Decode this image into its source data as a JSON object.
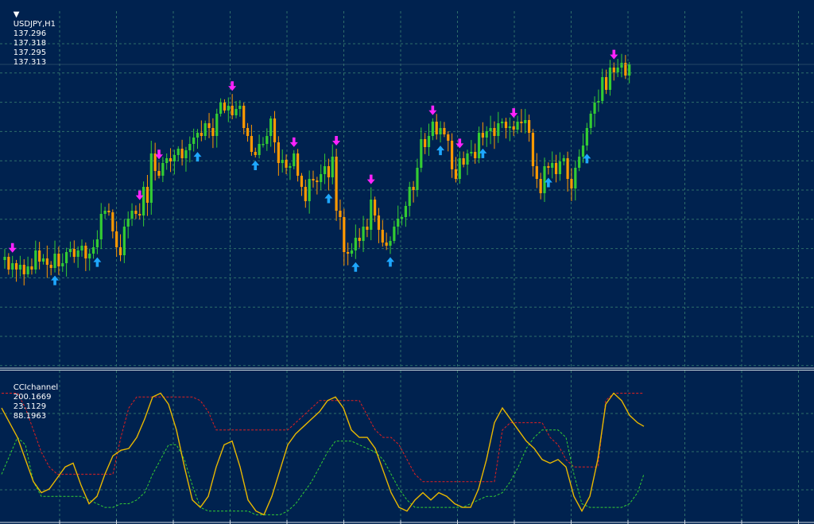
{
  "main_header": {
    "symbol": "USDJPY,H1",
    "open": "137.296",
    "high": "137.318",
    "low": "137.295",
    "close": "137.313"
  },
  "indicator_header": {
    "name": "CCIchannel",
    "value_1": "200.1669",
    "value_2": "23.1129",
    "value_3": "88.1963"
  },
  "colors": {
    "background": "#00224f",
    "grid": "#2e6e6a",
    "bull_candle": "#33cc33",
    "bear_candle": "#ff9900",
    "arrow_up": "#1ea7ff",
    "arrow_down": "#ff22ff",
    "cci_line": "#e8b800",
    "upper_channel": "#e02020",
    "lower_channel": "#33cc33"
  },
  "chart_data": [
    {
      "type": "candlestick",
      "title": "USDJPY,H1",
      "price_path": [
        138,
        122,
        130,
        122,
        128,
        116,
        126,
        122,
        146,
        132,
        136,
        128,
        124,
        142,
        126,
        130,
        144,
        148,
        138,
        146,
        152,
        136,
        142,
        150,
        160,
        192,
        196,
        194,
        170,
        150,
        140,
        176,
        186,
        196,
        192,
        190,
        226,
        206,
        268,
        246,
        240,
        256,
        262,
        258,
        266,
        274,
        262,
        272,
        280,
        288,
        294,
        290,
        306,
        300,
        290,
        318,
        332,
        322,
        328,
        316,
        324,
        328,
        300,
        290,
        270,
        266,
        280,
        280,
        290,
        312,
        282,
        256,
        260,
        250,
        252,
        268,
        240,
        226,
        208,
        236,
        234,
        232,
        242,
        252,
        238,
        264,
        196,
        188,
        144,
        142,
        146,
        162,
        158,
        176,
        172,
        210,
        190,
        172,
        156,
        152,
        158,
        176,
        186,
        188,
        202,
        226,
        222,
        250,
        286,
        276,
        290,
        308,
        292,
        300,
        292,
        284,
        248,
        236,
        262,
        254,
        268,
        270,
        262,
        294,
        288,
        296,
        300,
        290,
        306,
        308,
        300,
        302,
        298,
        308,
        306,
        310,
        294,
        252,
        236,
        218,
        252,
        250,
        256,
        242,
        258,
        262,
        236,
        224,
        250,
        264,
        278,
        300,
        318,
        332,
        334,
        364,
        348,
        376,
        370,
        376,
        382,
        366,
        380
      ],
      "x_start": 6,
      "x_step": 4.85,
      "arrows": [
        {
          "dir": "down",
          "i": 2
        },
        {
          "dir": "up",
          "i": 13
        },
        {
          "dir": "up",
          "i": 24
        },
        {
          "dir": "down",
          "i": 35
        },
        {
          "dir": "down",
          "i": 40
        },
        {
          "dir": "up",
          "i": 50
        },
        {
          "dir": "down",
          "i": 59
        },
        {
          "dir": "up",
          "i": 65
        },
        {
          "dir": "down",
          "i": 75
        },
        {
          "dir": "up",
          "i": 84
        },
        {
          "dir": "down",
          "i": 86
        },
        {
          "dir": "up",
          "i": 91
        },
        {
          "dir": "down",
          "i": 95
        },
        {
          "dir": "up",
          "i": 100
        },
        {
          "dir": "down",
          "i": 111
        },
        {
          "dir": "up",
          "i": 113
        },
        {
          "dir": "down",
          "i": 118
        },
        {
          "dir": "up",
          "i": 124
        },
        {
          "dir": "down",
          "i": 132
        },
        {
          "dir": "up",
          "i": 141
        },
        {
          "dir": "up",
          "i": 151
        },
        {
          "dir": "down",
          "i": 158
        }
      ]
    },
    {
      "type": "line",
      "title": "CCIchannel",
      "x": [
        0,
        10,
        20,
        30,
        40,
        50,
        60,
        70,
        80,
        90,
        100,
        110,
        120,
        130,
        140,
        150,
        160,
        170,
        180,
        190,
        200,
        210,
        220,
        230,
        240,
        250,
        260,
        270,
        280,
        290,
        300,
        310,
        320,
        330,
        340,
        350,
        360,
        370,
        380,
        390,
        400,
        410,
        420,
        430,
        440,
        450,
        460,
        470,
        480,
        490,
        500,
        510,
        520,
        530,
        540,
        550,
        560,
        570,
        580,
        590,
        600,
        610,
        620,
        630,
        640,
        650,
        660,
        670,
        680,
        690,
        700,
        710,
        720,
        730,
        740,
        750,
        760,
        770,
        780,
        790,
        800,
        808
      ],
      "series": [
        {
          "values": [
            120,
            80,
            40,
            -20,
            -80,
            -110,
            -100,
            -70,
            -40,
            -30,
            -90,
            -140,
            -120,
            -60,
            -10,
            5,
            10,
            40,
            90,
            150,
            160,
            130,
            60,
            -40,
            -130,
            -150,
            -120,
            -40,
            20,
            30,
            -40,
            -130,
            -160,
            -170,
            -120,
            -50,
            20,
            50,
            70,
            90,
            110,
            140,
            150,
            120,
            60,
            40,
            40,
            10,
            -50,
            -110,
            -150,
            -160,
            -130,
            -110,
            -130,
            -110,
            -120,
            -140,
            -150,
            -150,
            -100,
            -20,
            80,
            120,
            90,
            60,
            30,
            10,
            -20,
            -30,
            -20,
            -40,
            -120,
            -160,
            -120,
            -20,
            130,
            160,
            140,
            100,
            80,
            70
          ]
        },
        {
          "values": [
            -60,
            -10,
            40,
            20,
            -80,
            -120,
            -120,
            -120,
            -120,
            -120,
            -120,
            -130,
            -140,
            -150,
            -150,
            -140,
            -140,
            -130,
            -110,
            -60,
            -20,
            20,
            20,
            -20,
            -90,
            -150,
            -160,
            -160,
            -160,
            -160,
            -160,
            -160,
            -170,
            -170,
            -170,
            -170,
            -160,
            -140,
            -110,
            -80,
            -40,
            0,
            30,
            30,
            30,
            20,
            10,
            0,
            -20,
            -60,
            -100,
            -130,
            -150,
            -150,
            -150,
            -150,
            -150,
            -150,
            -150,
            -140,
            -130,
            -120,
            -120,
            -110,
            -80,
            -40,
            10,
            40,
            60,
            60,
            60,
            40,
            -60,
            -140,
            -150,
            -150,
            -150,
            -150,
            -150,
            -140,
            -110,
            -60
          ]
        },
        {
          "values": [
            160,
            160,
            160,
            120,
            60,
            0,
            -40,
            -60,
            -60,
            -60,
            -60,
            -60,
            -60,
            -60,
            -60,
            40,
            120,
            150,
            150,
            150,
            150,
            150,
            150,
            150,
            150,
            140,
            110,
            60,
            60,
            60,
            60,
            60,
            60,
            60,
            60,
            60,
            60,
            80,
            100,
            120,
            140,
            140,
            140,
            140,
            140,
            140,
            100,
            60,
            40,
            40,
            20,
            -20,
            -60,
            -80,
            -80,
            -80,
            -80,
            -80,
            -80,
            -80,
            -80,
            -80,
            -80,
            60,
            80,
            80,
            80,
            80,
            80,
            40,
            20,
            -20,
            -40,
            -40,
            -40,
            -40,
            140,
            160,
            160,
            160,
            160,
            160
          ]
        }
      ]
    }
  ]
}
